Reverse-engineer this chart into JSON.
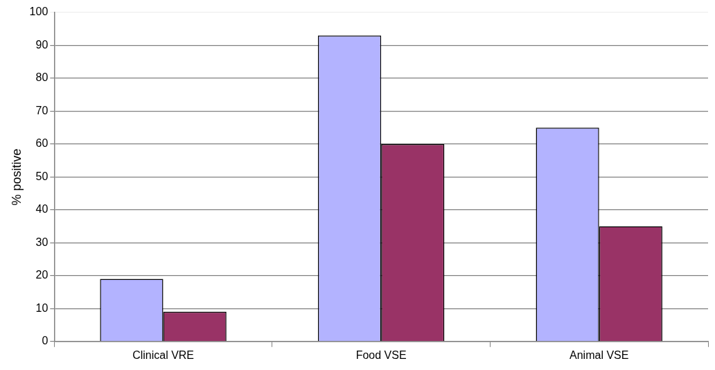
{
  "chart_data": {
    "type": "bar",
    "ylabel": "% positive",
    "categories": [
      "Clinical VRE",
      "Food VSE",
      "Animal VSE"
    ],
    "series": [
      {
        "color": "#b3b3ff",
        "values": [
          19,
          93,
          65
        ]
      },
      {
        "color": "#993366",
        "values": [
          9,
          60,
          35
        ]
      }
    ],
    "ylim": [
      0,
      100
    ],
    "yticks": [
      0,
      10,
      20,
      30,
      40,
      50,
      60,
      70,
      80,
      90,
      100
    ],
    "grid": "y",
    "legend": false
  }
}
